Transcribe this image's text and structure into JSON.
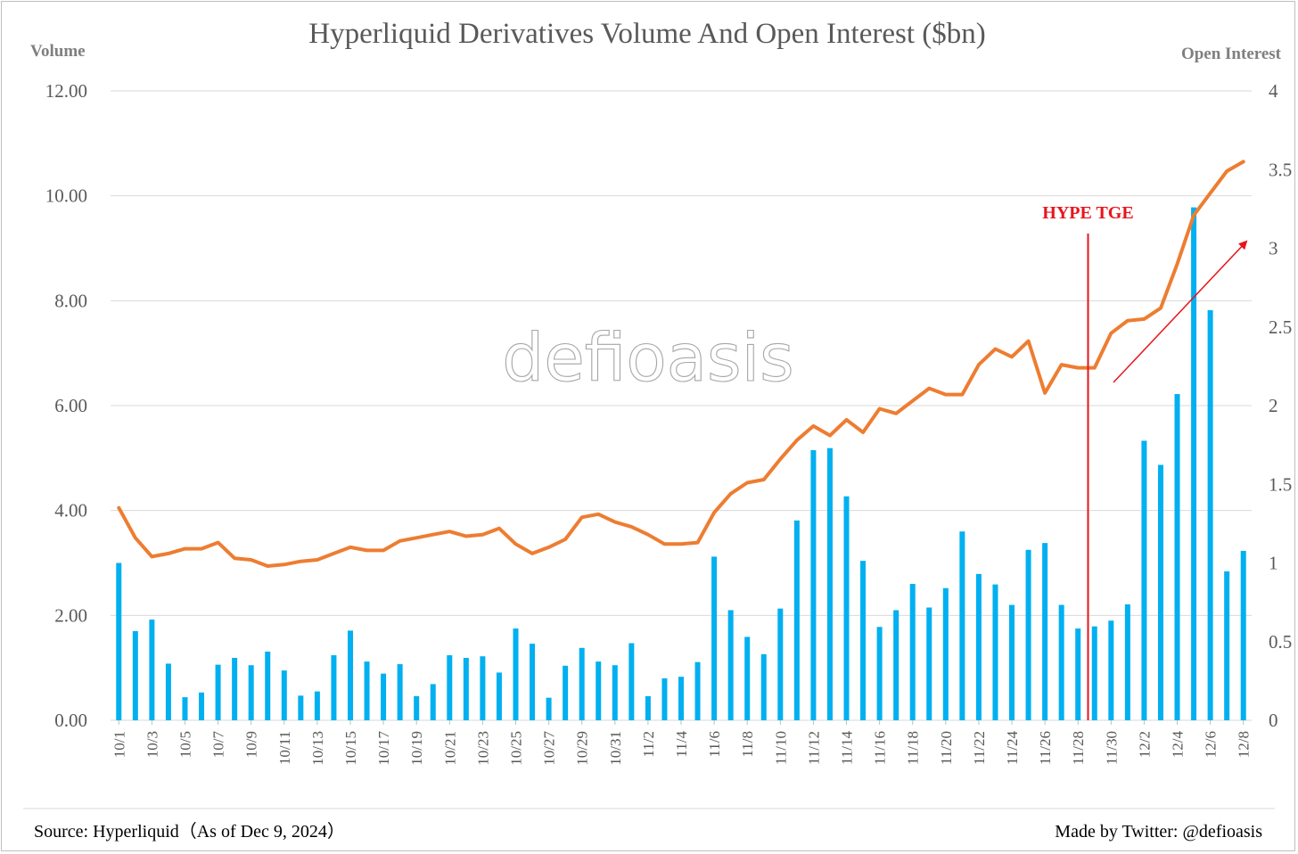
{
  "chart_data": {
    "type": "bar+line",
    "title": "Hyperliquid Derivatives Volume And Open Interest ($bn)",
    "left_axis_label": "Volume",
    "right_axis_label": "Open Interest",
    "left_ylim": [
      0,
      12
    ],
    "left_ticks": [
      "0.00",
      "2.00",
      "4.00",
      "6.00",
      "8.00",
      "10.00",
      "12.00"
    ],
    "right_ylim": [
      0,
      4
    ],
    "right_ticks": [
      "0",
      "0.5",
      "1",
      "1.5",
      "2",
      "2.5",
      "3",
      "3.5",
      "4"
    ],
    "grid": true,
    "categories": [
      "10/1",
      "10/2",
      "10/3",
      "10/4",
      "10/5",
      "10/6",
      "10/7",
      "10/8",
      "10/9",
      "10/10",
      "10/11",
      "10/12",
      "10/13",
      "10/14",
      "10/15",
      "10/16",
      "10/17",
      "10/18",
      "10/19",
      "10/20",
      "10/21",
      "10/22",
      "10/23",
      "10/24",
      "10/25",
      "10/26",
      "10/27",
      "10/28",
      "10/29",
      "10/30",
      "10/31",
      "11/1",
      "11/2",
      "11/3",
      "11/4",
      "11/5",
      "11/6",
      "11/7",
      "11/8",
      "11/9",
      "11/10",
      "11/11",
      "11/12",
      "11/13",
      "11/14",
      "11/15",
      "11/16",
      "11/17",
      "11/18",
      "11/19",
      "11/20",
      "11/21",
      "11/22",
      "11/23",
      "11/24",
      "11/25",
      "11/26",
      "11/27",
      "11/28",
      "11/29",
      "11/30",
      "12/1",
      "12/2",
      "12/3",
      "12/4",
      "12/5",
      "12/6",
      "12/7",
      "12/8"
    ],
    "x_tick_labels": [
      "10/1",
      "10/3",
      "10/5",
      "10/7",
      "10/9",
      "10/11",
      "10/13",
      "10/15",
      "10/17",
      "10/19",
      "10/21",
      "10/23",
      "10/25",
      "10/27",
      "10/29",
      "10/31",
      "11/2",
      "11/4",
      "11/6",
      "11/8",
      "11/10",
      "11/12",
      "11/14",
      "11/16",
      "11/18",
      "11/20",
      "11/22",
      "11/24",
      "11/26",
      "11/28",
      "11/30",
      "12/2",
      "12/4",
      "12/6",
      "12/8"
    ],
    "series": [
      {
        "kind": "bar",
        "axis": "left",
        "color": "#00b0f0",
        "values": [
          3.0,
          1.7,
          1.92,
          1.08,
          0.44,
          0.53,
          1.06,
          1.19,
          1.05,
          1.31,
          0.95,
          0.47,
          0.55,
          1.24,
          1.71,
          1.12,
          0.89,
          1.07,
          0.46,
          0.69,
          1.24,
          1.19,
          1.22,
          0.91,
          1.75,
          1.46,
          0.43,
          1.04,
          1.38,
          1.12,
          1.05,
          1.47,
          0.46,
          0.8,
          0.83,
          1.11,
          3.12,
          2.1,
          1.59,
          1.26,
          2.13,
          3.81,
          5.15,
          5.19,
          4.27,
          3.04,
          1.78,
          2.1,
          2.6,
          2.15,
          2.52,
          3.6,
          2.79,
          2.59,
          2.2,
          3.25,
          3.38,
          2.2,
          1.75,
          1.79,
          1.9,
          2.21,
          5.33,
          4.87,
          6.22,
          9.78,
          7.82,
          2.84,
          3.23
        ]
      },
      {
        "kind": "line",
        "axis": "right",
        "color": "#ed7d31",
        "values": [
          1.35,
          1.16,
          1.04,
          1.06,
          1.09,
          1.09,
          1.13,
          1.03,
          1.02,
          0.98,
          0.99,
          1.01,
          1.02,
          1.06,
          1.1,
          1.08,
          1.08,
          1.14,
          1.16,
          1.18,
          1.2,
          1.17,
          1.18,
          1.22,
          1.12,
          1.06,
          1.1,
          1.15,
          1.29,
          1.31,
          1.26,
          1.23,
          1.18,
          1.12,
          1.12,
          1.13,
          1.32,
          1.44,
          1.51,
          1.53,
          1.66,
          1.78,
          1.87,
          1.81,
          1.91,
          1.83,
          1.98,
          1.95,
          2.03,
          2.11,
          2.07,
          2.07,
          2.26,
          2.36,
          2.31,
          2.41,
          2.08,
          2.26,
          2.24,
          2.24,
          2.46,
          2.54,
          2.55,
          2.62,
          2.9,
          3.21,
          3.35,
          3.49,
          3.55
        ]
      }
    ],
    "annotations": {
      "event_label": "HYPE TGE",
      "event_color": "#e8141c",
      "trend_arrow": "up"
    },
    "watermark": "defioasis"
  },
  "footer": {
    "source": "Source: Hyperliquid（As of Dec 9, 2024）",
    "credit": "Made by Twitter: @defioasis"
  }
}
